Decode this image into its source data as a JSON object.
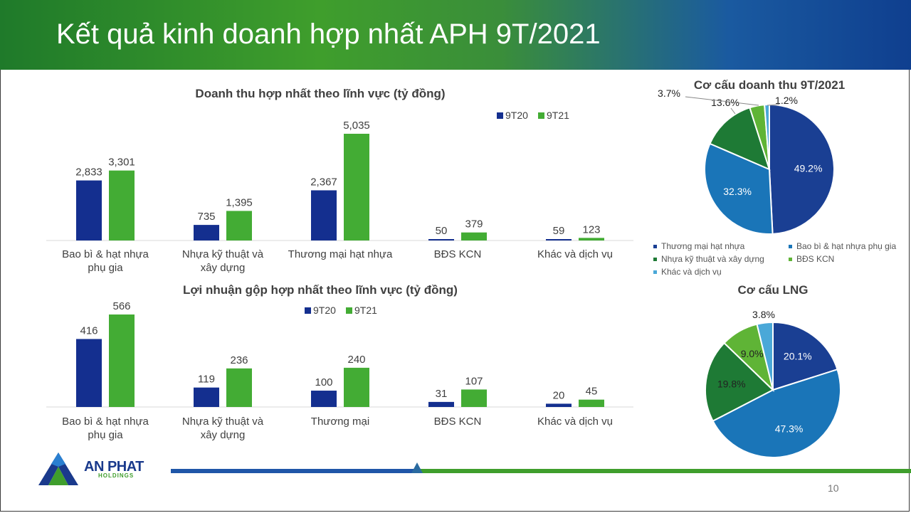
{
  "header": {
    "title": "Kết quả kinh doanh hợp nhất APH 9T/2021"
  },
  "colors": {
    "s9T20": "#142f8f",
    "s9T21": "#43ac34",
    "pie": [
      "#1a3f93",
      "#1a75b8",
      "#1e7a35",
      "#5fb436",
      "#4aa8d8"
    ]
  },
  "legend_pie": [
    "Thương mại hạt nhựa",
    "Bao bì & hạt nhựa phụ gia",
    "Nhựa kỹ thuật và xây dựng",
    "BĐS KCN",
    "Khác và dịch vụ"
  ],
  "chart_data": [
    {
      "type": "bar",
      "title": "Doanh thu hợp nhất theo lĩnh vực (tỷ đồng)",
      "categories": [
        "Bao bì & hạt nhựa phụ gia",
        "Nhựa kỹ thuật và xây dựng",
        "Thương mại hạt nhựa",
        "BĐS KCN",
        "Khác và dịch vụ"
      ],
      "series": [
        {
          "name": "9T20",
          "values": [
            2833,
            735,
            2367,
            50,
            59
          ],
          "labels": [
            "2,833",
            "735",
            "2,367",
            "50",
            "59"
          ]
        },
        {
          "name": "9T21",
          "values": [
            3301,
            1395,
            5035,
            379,
            123
          ],
          "labels": [
            "3,301",
            "1,395",
            "5,035",
            "379",
            "123"
          ]
        }
      ],
      "legend_position": "top-right"
    },
    {
      "type": "bar",
      "title": "Lợi nhuận gộp hợp nhất theo lĩnh vực (tỷ đồng)",
      "categories": [
        "Bao bì & hạt nhựa phụ gia",
        "Nhựa kỹ thuật và xây dựng",
        "Thương mại",
        "BĐS KCN",
        "Khác và dịch vụ"
      ],
      "series": [
        {
          "name": "9T20",
          "values": [
            416,
            119,
            100,
            31,
            20
          ],
          "labels": [
            "416",
            "119",
            "100",
            "31",
            "20"
          ]
        },
        {
          "name": "9T21",
          "values": [
            566,
            236,
            240,
            107,
            45
          ],
          "labels": [
            "566",
            "236",
            "240",
            "107",
            "45"
          ]
        }
      ],
      "legend_position": "top-right"
    },
    {
      "type": "pie",
      "title": "Cơ cấu doanh thu 9T/2021",
      "categories": [
        "Thương mại hạt nhựa",
        "Bao bì & hạt nhựa phụ gia",
        "Nhựa kỹ thuật và xây dựng",
        "BĐS KCN",
        "Khác và dịch vụ"
      ],
      "values": [
        49.2,
        32.3,
        13.6,
        3.7,
        1.2
      ],
      "labels": [
        "49.2%",
        "32.3%",
        "13.6%",
        "3.7%",
        "1.2%"
      ],
      "legend_position": "bottom"
    },
    {
      "type": "pie",
      "title": "Cơ cấu LNG",
      "categories": [
        "Thương mại",
        "Bao bì & hạt nhựa phụ gia",
        "Nhựa kỹ thuật và xây dựng",
        "BĐS KCN",
        "Khác và dịch vụ"
      ],
      "values": [
        20.1,
        47.3,
        19.8,
        9.0,
        3.8
      ],
      "labels": [
        "20.1%",
        "47.3%",
        "19.8%",
        "9.0%",
        "3.8%"
      ]
    }
  ],
  "footer": {
    "page_number": "10",
    "logo_name": "AN PHAT",
    "logo_sub": "HOLDINGS"
  }
}
